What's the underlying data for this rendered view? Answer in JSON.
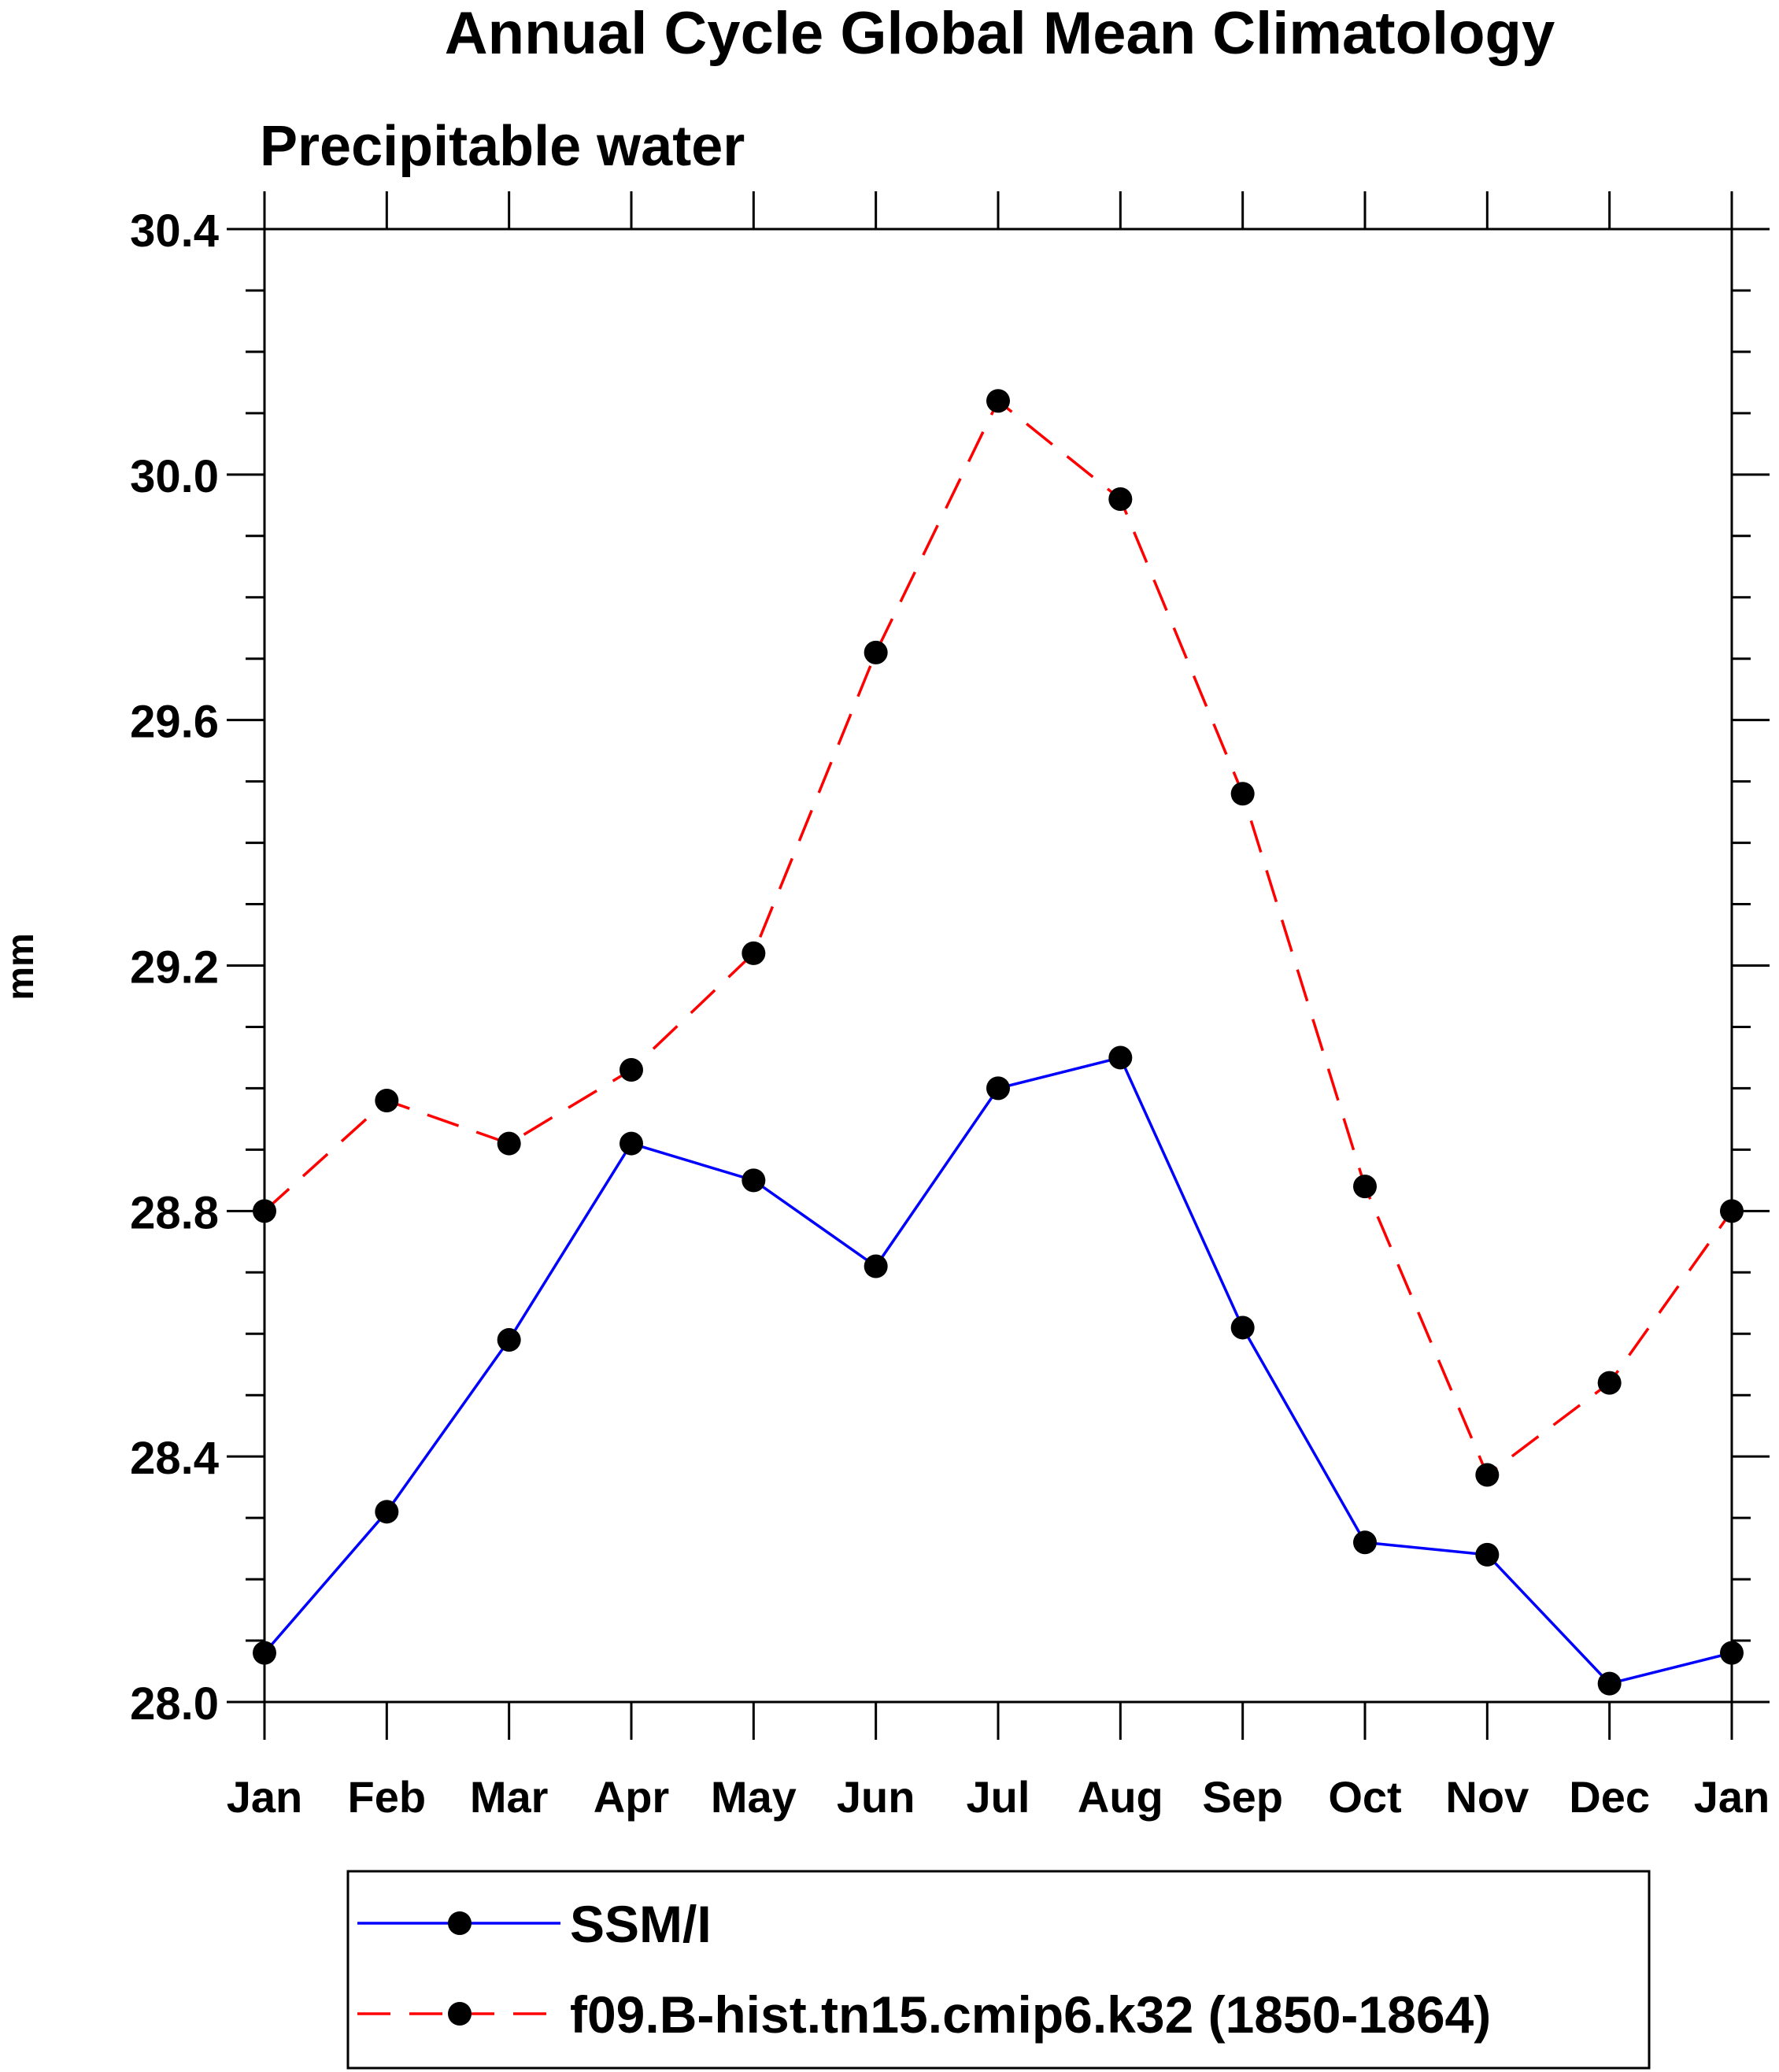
{
  "chart_data": {
    "type": "line",
    "title": "Annual Cycle Global Mean Climatology",
    "subtitle": "Precipitable water",
    "xlabel": "",
    "ylabel": "mm",
    "categories": [
      "Jan",
      "Feb",
      "Mar",
      "Apr",
      "May",
      "Jun",
      "Jul",
      "Aug",
      "Sep",
      "Oct",
      "Nov",
      "Dec",
      "Jan"
    ],
    "ylim": [
      28.0,
      30.4
    ],
    "yticks": [
      "28.0",
      "28.4",
      "28.8",
      "29.2",
      "29.6",
      "30.0",
      "30.4"
    ],
    "y_minor_step": 0.1,
    "grid": false,
    "legend_position": "bottom",
    "series": [
      {
        "name": "SSM/I",
        "values": [
          28.08,
          28.31,
          28.59,
          28.91,
          28.85,
          28.71,
          29.0,
          29.05,
          28.61,
          28.26,
          28.24,
          28.03,
          28.08
        ],
        "color": "#0000ff",
        "line_style": "solid",
        "marker": "filled-circle"
      },
      {
        "name": "f09.B-hist.tn15.cmip6.k32 (1850-1864)",
        "values": [
          28.8,
          28.98,
          28.91,
          29.03,
          29.22,
          29.71,
          30.12,
          29.96,
          29.48,
          28.84,
          28.37,
          28.52,
          28.8
        ],
        "color": "#ff0000",
        "line_style": "dashed",
        "marker": "filled-circle"
      }
    ]
  }
}
